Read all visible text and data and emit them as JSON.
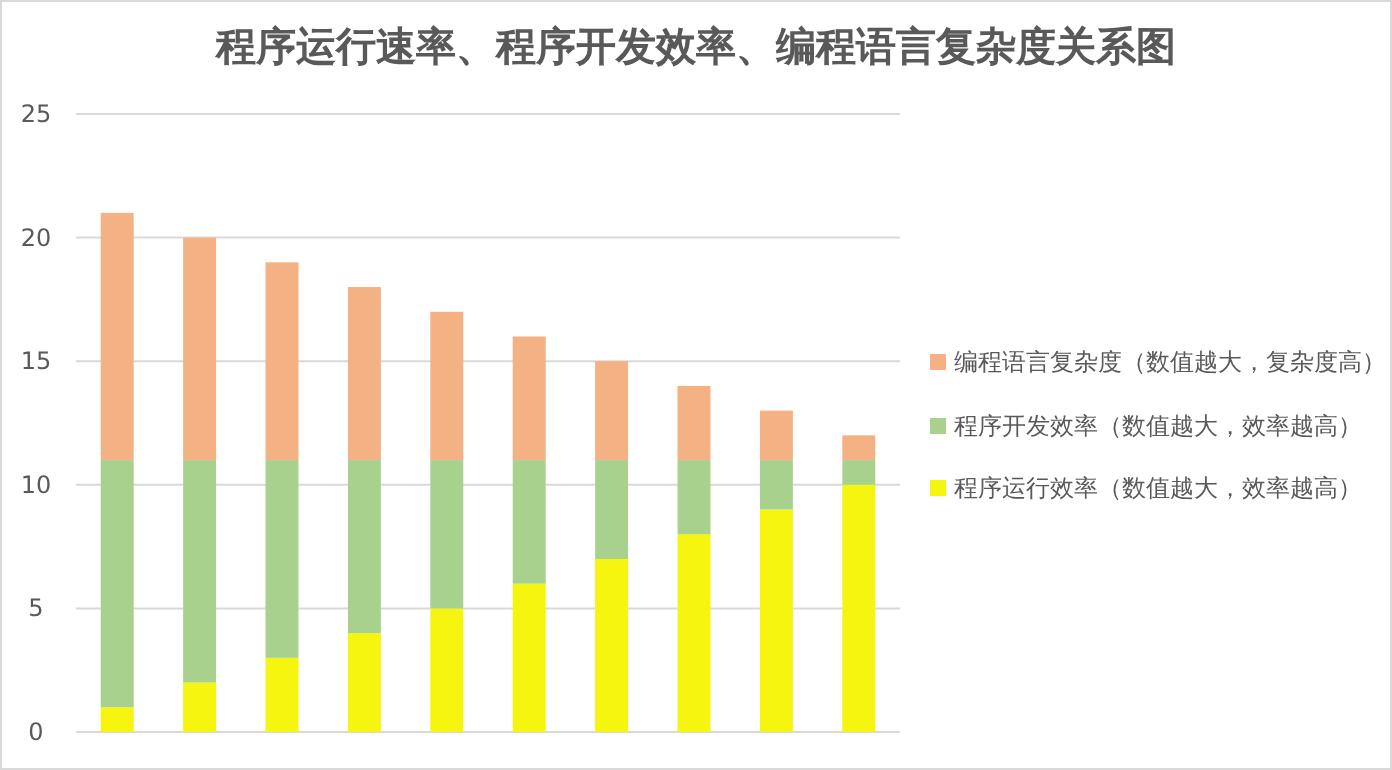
{
  "chart_data": {
    "type": "bar",
    "stacked": true,
    "title": "程序运行速率、程序开发效率、编程语言复杂度关系图",
    "categories": [
      null,
      null,
      null,
      null,
      null,
      null,
      null,
      null,
      null,
      null
    ],
    "series": [
      {
        "name": "程序运行效率（数值越大，效率越高）",
        "color": "#f5f50f",
        "values": [
          1,
          2,
          3,
          4,
          5,
          6,
          7,
          8,
          9,
          10
        ]
      },
      {
        "name": "程序开发效率（数值越大，效率越高）",
        "color": "#a9d18e",
        "values": [
          10,
          9,
          8,
          7,
          6,
          5,
          4,
          3,
          2,
          1
        ]
      },
      {
        "name": "编程语言复杂度（数值越大，复杂度高）",
        "color": "#f4b183",
        "values": [
          10,
          9,
          8,
          7,
          6,
          5,
          4,
          3,
          2,
          1
        ]
      }
    ],
    "ylim": [
      0,
      25
    ],
    "yticks": [
      0,
      5,
      10,
      15,
      20,
      25
    ],
    "grid": "y",
    "legend": "right"
  }
}
